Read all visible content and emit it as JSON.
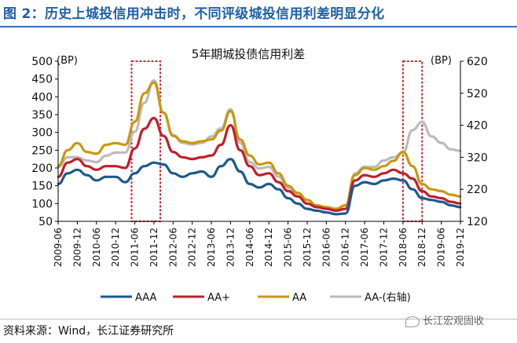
{
  "figure": {
    "title": "图 2：历史上城投信用冲击时，不同评级城投信用利差明显分化",
    "source": "资料来源：Wind，长江证券研究所",
    "watermark": "长江宏观固收"
  },
  "chart_data": {
    "type": "line",
    "title": "5年期城投债信用利差",
    "left_axis": {
      "unit": "(BP)",
      "ylim": [
        50,
        500
      ],
      "ticks": [
        50,
        100,
        150,
        200,
        250,
        300,
        350,
        400,
        450,
        500
      ]
    },
    "right_axis": {
      "unit": "(BP)",
      "ylim": [
        120,
        620
      ],
      "ticks": [
        120,
        220,
        320,
        420,
        520,
        620
      ]
    },
    "x_ticks": [
      "2009-06",
      "2009-12",
      "2010-06",
      "2010-12",
      "2011-06",
      "2011-12",
      "2012-06",
      "2012-12",
      "2013-06",
      "2013-12",
      "2014-06",
      "2014-12",
      "2015-06",
      "2015-12",
      "2016-06",
      "2016-12",
      "2017-06",
      "2017-12",
      "2018-06",
      "2018-12",
      "2019-06",
      "2019-12"
    ],
    "grid": false,
    "legend": "bottom",
    "highlights": [
      {
        "from": "2011-05",
        "to": "2012-02"
      },
      {
        "from": "2018-06",
        "to": "2018-12"
      }
    ],
    "series": [
      {
        "name": "AAA",
        "axis": "left",
        "color": "#1c5a8c",
        "x": [
          "2009-06",
          "2009-09",
          "2009-12",
          "2010-03",
          "2010-06",
          "2010-09",
          "2010-12",
          "2011-03",
          "2011-06",
          "2011-09",
          "2011-12",
          "2012-03",
          "2012-06",
          "2012-09",
          "2012-12",
          "2013-03",
          "2013-06",
          "2013-09",
          "2013-12",
          "2014-03",
          "2014-06",
          "2014-09",
          "2014-12",
          "2015-03",
          "2015-06",
          "2015-09",
          "2015-12",
          "2016-03",
          "2016-06",
          "2016-09",
          "2016-12",
          "2017-03",
          "2017-06",
          "2017-09",
          "2017-12",
          "2018-03",
          "2018-06",
          "2018-09",
          "2018-12",
          "2019-03",
          "2019-06",
          "2019-09",
          "2019-12"
        ],
        "values": [
          155,
          185,
          195,
          180,
          165,
          175,
          175,
          160,
          185,
          205,
          215,
          210,
          185,
          175,
          185,
          190,
          175,
          205,
          225,
          190,
          155,
          145,
          155,
          140,
          115,
          100,
          85,
          80,
          75,
          70,
          72,
          150,
          160,
          155,
          165,
          170,
          165,
          140,
          115,
          110,
          105,
          95,
          90
        ]
      },
      {
        "name": "AA+",
        "axis": "left",
        "color": "#c0202a",
        "x": [
          "2009-06",
          "2009-09",
          "2009-12",
          "2010-03",
          "2010-06",
          "2010-09",
          "2010-12",
          "2011-03",
          "2011-06",
          "2011-09",
          "2011-12",
          "2012-03",
          "2012-06",
          "2012-09",
          "2012-12",
          "2013-03",
          "2013-06",
          "2013-09",
          "2013-12",
          "2014-03",
          "2014-06",
          "2014-09",
          "2014-12",
          "2015-03",
          "2015-06",
          "2015-09",
          "2015-12",
          "2016-03",
          "2016-06",
          "2016-09",
          "2016-12",
          "2017-03",
          "2017-06",
          "2017-09",
          "2017-12",
          "2018-03",
          "2018-06",
          "2018-09",
          "2018-12",
          "2019-03",
          "2019-06",
          "2019-09",
          "2019-12"
        ],
        "values": [
          175,
          215,
          225,
          205,
          195,
          205,
          205,
          200,
          255,
          310,
          340,
          290,
          245,
          230,
          225,
          230,
          235,
          265,
          320,
          250,
          205,
          180,
          185,
          160,
          135,
          120,
          100,
          90,
          85,
          80,
          85,
          165,
          180,
          175,
          185,
          195,
          185,
          170,
          135,
          120,
          115,
          105,
          100
        ]
      },
      {
        "name": "AA",
        "axis": "left",
        "color": "#c8980e",
        "x": [
          "2009-06",
          "2009-09",
          "2009-12",
          "2010-03",
          "2010-06",
          "2010-09",
          "2010-12",
          "2011-03",
          "2011-06",
          "2011-09",
          "2011-12",
          "2012-03",
          "2012-06",
          "2012-09",
          "2012-12",
          "2013-03",
          "2013-06",
          "2013-09",
          "2013-12",
          "2014-03",
          "2014-06",
          "2014-09",
          "2014-12",
          "2015-03",
          "2015-06",
          "2015-09",
          "2015-12",
          "2016-03",
          "2016-06",
          "2016-09",
          "2016-12",
          "2017-03",
          "2017-06",
          "2017-09",
          "2017-12",
          "2018-03",
          "2018-06",
          "2018-09",
          "2018-12",
          "2019-03",
          "2019-06",
          "2019-09",
          "2019-12"
        ],
        "values": [
          205,
          250,
          270,
          245,
          240,
          265,
          270,
          265,
          330,
          410,
          440,
          355,
          290,
          275,
          270,
          275,
          280,
          305,
          360,
          280,
          235,
          210,
          215,
          185,
          150,
          130,
          110,
          95,
          90,
          85,
          95,
          180,
          200,
          195,
          205,
          220,
          245,
          205,
          155,
          140,
          135,
          125,
          120
        ]
      },
      {
        "name": "AA-(右轴)",
        "axis": "right",
        "color": "#bbbbbb",
        "x": [
          "2009-06",
          "2009-09",
          "2009-12",
          "2010-03",
          "2010-06",
          "2010-09",
          "2010-12",
          "2011-03",
          "2011-06",
          "2011-09",
          "2011-12",
          "2012-03",
          "2012-06",
          "2012-09",
          "2012-12",
          "2013-03",
          "2013-06",
          "2013-09",
          "2013-12",
          "2014-03",
          "2014-06",
          "2014-09",
          "2014-12",
          "2015-03",
          "2015-06",
          "2015-09",
          "2015-12",
          "2016-03",
          "2016-06",
          "2016-09",
          "2016-12",
          "2017-03",
          "2017-06",
          "2017-09",
          "2017-12",
          "2018-03",
          "2018-06",
          "2018-09",
          "2018-12",
          "2019-03",
          "2019-06",
          "2019-09",
          "2019-12"
        ],
        "values": [
          290,
          320,
          320,
          310,
          305,
          325,
          335,
          335,
          400,
          490,
          560,
          460,
          390,
          365,
          360,
          365,
          385,
          410,
          470,
          365,
          305,
          285,
          290,
          260,
          225,
          200,
          175,
          165,
          160,
          155,
          170,
          270,
          290,
          290,
          310,
          320,
          335,
          405,
          430,
          385,
          365,
          345,
          340
        ]
      }
    ]
  }
}
